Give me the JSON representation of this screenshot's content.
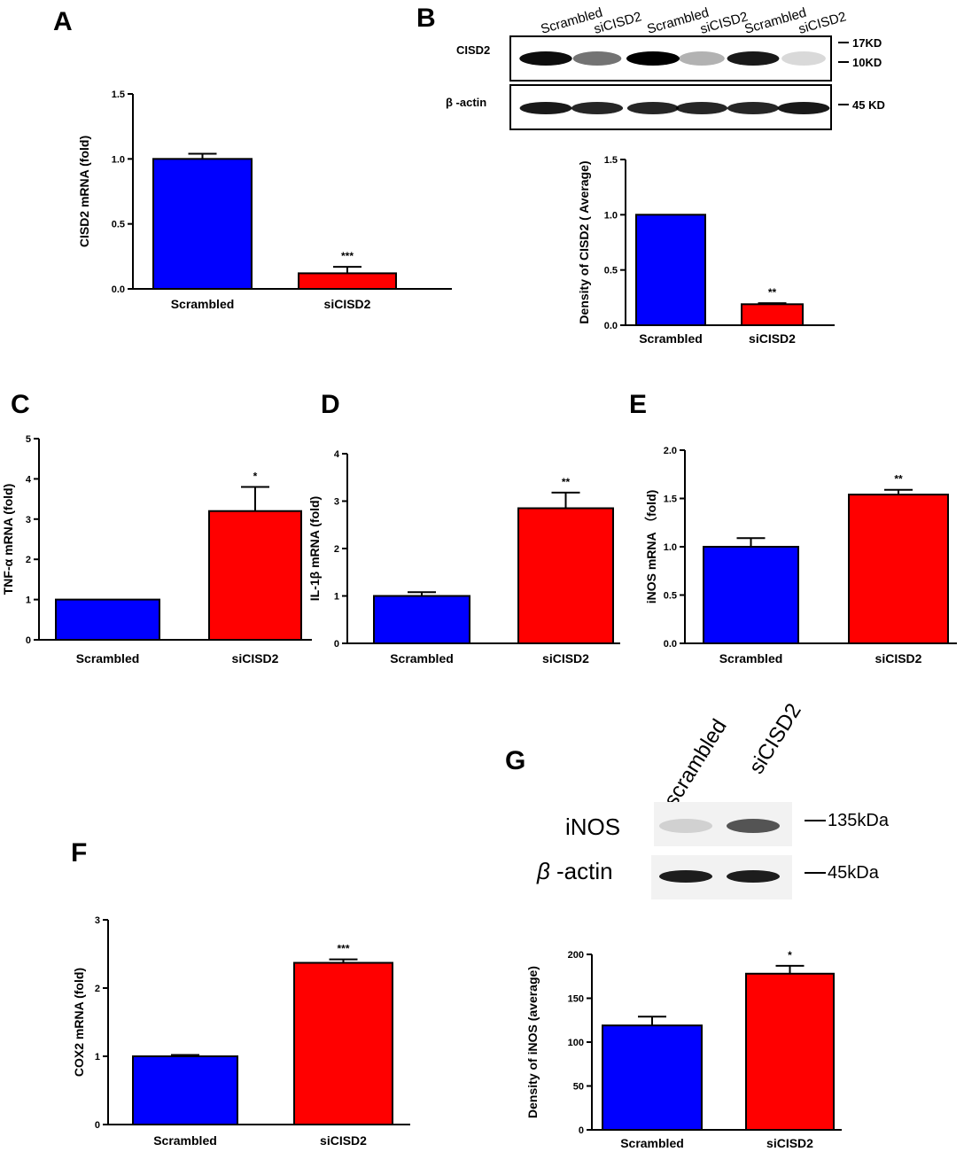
{
  "panel_labels": [
    "A",
    "B",
    "C",
    "D",
    "E",
    "F",
    "G"
  ],
  "colors": {
    "control": "#0000ff",
    "treatment": "#ff0000",
    "axis": "#000000"
  },
  "blot_B": {
    "lanes": [
      "Scrambled",
      "siCISD2",
      "Scrambled",
      "siCISD2",
      "Scrambled",
      "siCISD2"
    ],
    "rows": [
      {
        "label": "CISD2",
        "markers": [
          "17KD",
          "10KD"
        ],
        "intensities": [
          0.95,
          0.55,
          1.0,
          0.3,
          0.9,
          0.15
        ]
      },
      {
        "label": "β -actin",
        "markers": [
          "45 KD"
        ],
        "intensities": [
          0.9,
          0.85,
          0.85,
          0.85,
          0.85,
          0.9
        ]
      }
    ]
  },
  "blot_G": {
    "lanes": [
      "scrambled",
      "siCISD2"
    ],
    "rows": [
      {
        "label": "iNOS",
        "label_main": "iNOS",
        "marker": "135kDa",
        "intensities": [
          0.15,
          0.7
        ]
      },
      {
        "label": "β -actin",
        "label_greek": "β",
        "label_rest": " -actin",
        "marker": "45kDa",
        "intensities": [
          0.95,
          0.95
        ]
      }
    ]
  },
  "chart_data": [
    {
      "panel": "A",
      "type": "bar",
      "categories": [
        "Scrambled",
        "siCISD2"
      ],
      "values": [
        1.0,
        0.12
      ],
      "errors": [
        0.04,
        0.05
      ],
      "significance": [
        "",
        "***"
      ],
      "ylabel": "CISD2 mRNA (fold)",
      "ylim": [
        0,
        1.5
      ],
      "yticks": [
        "0.0",
        "0.5",
        "1.0",
        "1.5"
      ]
    },
    {
      "panel": "B",
      "type": "bar",
      "categories": [
        "Scrambled",
        "siCISD2"
      ],
      "values": [
        1.0,
        0.19
      ],
      "errors": [
        0.0,
        0.01
      ],
      "significance": [
        "",
        "**"
      ],
      "ylabel": "Density of CISD2 ( Average)",
      "ylim": [
        0,
        1.5
      ],
      "yticks": [
        "0.0",
        "0.5",
        "1.0",
        "1.5"
      ]
    },
    {
      "panel": "C",
      "type": "bar",
      "categories": [
        "Scrambled",
        "siCISD2"
      ],
      "values": [
        1.0,
        3.2
      ],
      "errors": [
        0.0,
        0.6
      ],
      "significance": [
        "",
        "*"
      ],
      "ylabel": "TNF-α mRNA (fold)",
      "ylim": [
        0,
        5
      ],
      "yticks": [
        "0",
        "1",
        "2",
        "3",
        "4",
        "5"
      ]
    },
    {
      "panel": "D",
      "type": "bar",
      "categories": [
        "Scrambled",
        "siCISD2"
      ],
      "values": [
        1.0,
        2.85
      ],
      "errors": [
        0.08,
        0.33
      ],
      "significance": [
        "",
        "**"
      ],
      "ylabel": "IL-1β mRNA (fold)",
      "ylim": [
        0,
        4
      ],
      "yticks": [
        "0",
        "1",
        "2",
        "3",
        "4"
      ]
    },
    {
      "panel": "E",
      "type": "bar",
      "categories": [
        "Scrambled",
        "siCISD2"
      ],
      "values": [
        1.0,
        1.54
      ],
      "errors": [
        0.09,
        0.05
      ],
      "significance": [
        "",
        "**"
      ],
      "ylabel": "iNOS mRNA （fold)",
      "ylim": [
        0,
        2.0
      ],
      "yticks": [
        "0.0",
        "0.5",
        "1.0",
        "1.5",
        "2.0"
      ]
    },
    {
      "panel": "F",
      "type": "bar",
      "categories": [
        "Scrambled",
        "siCISD2"
      ],
      "values": [
        1.0,
        2.37
      ],
      "errors": [
        0.02,
        0.05
      ],
      "significance": [
        "",
        "***"
      ],
      "ylabel": "COX2 mRNA (fold)",
      "ylim": [
        0,
        3
      ],
      "yticks": [
        "0",
        "1",
        "2",
        "3"
      ]
    },
    {
      "panel": "G",
      "type": "bar",
      "categories": [
        "Scrambled",
        "siCISD2"
      ],
      "values": [
        119,
        178
      ],
      "errors": [
        10,
        9
      ],
      "significance": [
        "",
        "*"
      ],
      "ylabel": "Density of iNOS (average)",
      "ylim": [
        0,
        200
      ],
      "yticks": [
        "0",
        "50",
        "100",
        "150",
        "200"
      ]
    }
  ]
}
